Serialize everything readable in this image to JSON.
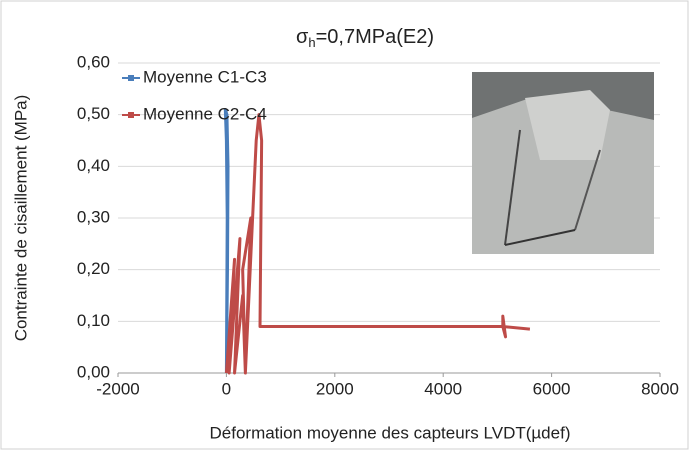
{
  "chart_data": {
    "type": "line",
    "title": {
      "symbol": "σ",
      "subscript": "h",
      "text": "=0,7MPa(E2)"
    },
    "x_label": "Déformation moyenne des capteurs LVDT(µdef)",
    "y_label": "Contrainte de cisaillement (MPa)",
    "xlim": [
      -2000,
      8000
    ],
    "xticks": [
      -2000,
      0,
      2000,
      4000,
      6000,
      8000
    ],
    "ylim": [
      0,
      0.6
    ],
    "yticks": [
      {
        "value": 0,
        "label": "0,00"
      },
      {
        "value": 0.1,
        "label": "0,10"
      },
      {
        "value": 0.2,
        "label": "0,20"
      },
      {
        "value": 0.3,
        "label": "0,30"
      },
      {
        "value": 0.4,
        "label": "0,40"
      },
      {
        "value": 0.5,
        "label": "0,50"
      },
      {
        "value": 0.6,
        "label": "0,60"
      }
    ],
    "grid": true,
    "legend": "top-left",
    "series": [
      {
        "name": "Moyenne C1-C3",
        "color": "#4a7ebb",
        "x": [
          0,
          10,
          20,
          25,
          30,
          10,
          -20,
          0,
          15,
          5,
          0
        ],
        "values": [
          0,
          0.1,
          0.2,
          0.3,
          0.4,
          0.5,
          0.51,
          0.45,
          0.3,
          0.1,
          0
        ]
      },
      {
        "name": "Moyenne C2-C4",
        "color": "#be4b48",
        "x": [
          0,
          150,
          50,
          250,
          150,
          300,
          350,
          300,
          450,
          350,
          550,
          600,
          650,
          620,
          5100,
          5100,
          5150,
          5100,
          5600
        ],
        "values": [
          0,
          0.22,
          0,
          0.26,
          0,
          0.15,
          0,
          0.2,
          0.3,
          0,
          0.45,
          0.5,
          0.45,
          0.09,
          0.09,
          0.11,
          0.07,
          0.09,
          0.085
        ]
      }
    ]
  }
}
